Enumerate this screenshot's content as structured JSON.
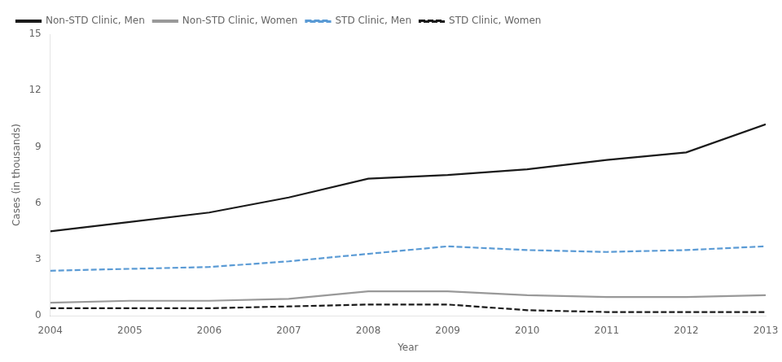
{
  "chart_data": {
    "type": "line",
    "x": [
      2004,
      2005,
      2006,
      2007,
      2008,
      2009,
      2010,
      2011,
      2012,
      2013
    ],
    "series": [
      {
        "name": "Non-STD Clinic, Men",
        "color": "#1a1a1a",
        "line_style": "solid",
        "values": [
          4.5,
          5.0,
          5.5,
          6.3,
          7.3,
          7.5,
          7.8,
          8.3,
          8.7,
          10.2
        ]
      },
      {
        "name": "Non-STD Clinic, Women",
        "color": "#999999",
        "line_style": "solid",
        "values": [
          0.7,
          0.8,
          0.8,
          0.9,
          1.3,
          1.3,
          1.1,
          1.0,
          1.0,
          1.1
        ]
      },
      {
        "name": "STD Clinic, Men",
        "color": "#5b9bd5",
        "line_style": "dashed",
        "values": [
          2.4,
          2.5,
          2.6,
          2.9,
          3.3,
          3.7,
          3.5,
          3.4,
          3.5,
          3.7
        ]
      },
      {
        "name": "STD Clinic, Women",
        "color": "#1a1a1a",
        "line_style": "dashed",
        "values": [
          0.4,
          0.4,
          0.4,
          0.5,
          0.6,
          0.6,
          0.3,
          0.2,
          0.2,
          0.2
        ]
      }
    ],
    "xlim": [
      2004,
      2013
    ],
    "xticks": [
      2004,
      2005,
      2006,
      2007,
      2008,
      2009,
      2010,
      2011,
      2012,
      2013
    ],
    "ylim": [
      0,
      15
    ],
    "yticks": [
      0,
      3,
      6,
      9,
      12,
      15
    ],
    "xlabel": "Year",
    "ylabel": "Cases (in thousands)",
    "legend": "upper left",
    "grid": false
  }
}
